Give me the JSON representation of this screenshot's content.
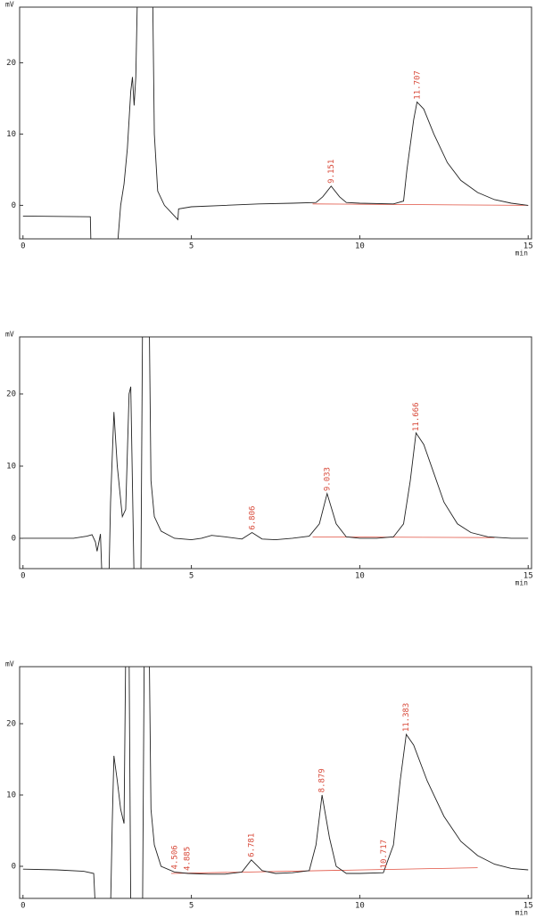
{
  "chart_data": [
    {
      "type": "line",
      "x_label": "min",
      "y_label": "mV",
      "xlim": [
        -0.1,
        15.1
      ],
      "ylim": [
        -4.7,
        27.8
      ],
      "xticks": [
        0,
        5,
        10,
        15
      ],
      "yticks": [
        0,
        10,
        20
      ],
      "color": "#222222",
      "x": [
        0,
        2.0,
        2.02,
        2.4,
        2.8,
        2.9,
        3.0,
        3.1,
        3.2,
        3.25,
        3.3,
        3.35,
        3.4,
        3.85,
        3.9,
        4.0,
        4.2,
        4.5,
        4.6,
        4.62,
        5,
        6,
        7,
        8,
        8.7,
        8.9,
        9.15,
        9.4,
        9.6,
        10,
        11,
        11.3,
        11.4,
        11.6,
        11.7,
        11.9,
        12.2,
        12.6,
        13,
        13.5,
        14,
        14.5,
        15
      ],
      "values": [
        -1.5,
        -1.6,
        -6,
        null,
        -6,
        0,
        3,
        8,
        16,
        18,
        14,
        18,
        30,
        30,
        10,
        2,
        0,
        -1.5,
        -2,
        -0.5,
        -0.2,
        0,
        0.2,
        0.3,
        0.4,
        1.2,
        2.7,
        1.2,
        0.4,
        0.3,
        0.2,
        0.6,
        5,
        12,
        14.5,
        13.5,
        10,
        6,
        3.5,
        1.8,
        0.8,
        0.3,
        0
      ],
      "baseline": {
        "color": "#e05040",
        "x": [
          8.6,
          15
        ],
        "values": [
          0.2,
          0
        ]
      },
      "peaks": [
        {
          "value": 9.151,
          "label": "9.151"
        },
        {
          "value": 11.707,
          "label": "11.707"
        }
      ]
    },
    {
      "type": "line",
      "x_label": "min",
      "y_label": "mV",
      "xlim": [
        -0.1,
        15.1
      ],
      "ylim": [
        -4.2,
        27.9
      ],
      "xticks": [
        0,
        5,
        10,
        15
      ],
      "yticks": [
        0,
        10,
        20
      ],
      "color": "#222222",
      "x": [
        0,
        1,
        1.5,
        1.9,
        2.05,
        2.15,
        2.2,
        2.3,
        2.35,
        2.45,
        2.55,
        2.6,
        2.7,
        2.8,
        2.95,
        3.05,
        3.15,
        3.2,
        3.3,
        3.4,
        3.5,
        3.55,
        3.75,
        3.8,
        3.9,
        4.1,
        4.5,
        5,
        5.3,
        5.6,
        6,
        6.5,
        6.8,
        7.1,
        7.5,
        8,
        8.5,
        8.8,
        9.03,
        9.3,
        9.6,
        10,
        10.5,
        11,
        11.3,
        11.5,
        11.67,
        11.9,
        12.2,
        12.5,
        12.9,
        13.3,
        13.8,
        14.5,
        15
      ],
      "values": [
        0,
        0,
        0,
        0.3,
        0.5,
        -0.5,
        -1.8,
        0.6,
        -6,
        null,
        -6,
        5,
        17.5,
        10,
        3,
        4,
        20,
        21,
        -6,
        null,
        -6,
        30,
        30,
        8,
        3,
        1,
        0,
        -0.2,
        0,
        0.4,
        0.2,
        -0.1,
        0.8,
        -0.1,
        -0.2,
        0,
        0.3,
        2,
        6.2,
        2,
        0.2,
        0,
        0,
        0.2,
        2,
        8,
        14.6,
        13,
        9,
        5,
        2,
        0.8,
        0.2,
        0,
        0
      ],
      "baseline": {
        "color": "#e05040",
        "x": [
          8.6,
          14
        ],
        "values": [
          0.2,
          0.1
        ]
      },
      "peaks": [
        {
          "value": 6.806,
          "label": "6.806"
        },
        {
          "value": 9.033,
          "label": "9.033"
        },
        {
          "value": 11.666,
          "label": "11.666"
        }
      ]
    },
    {
      "type": "line",
      "x_label": "min",
      "y_label": "mV",
      "xlim": [
        -0.1,
        15.1
      ],
      "ylim": [
        -4.5,
        28
      ],
      "xticks": [
        0,
        5,
        10,
        15
      ],
      "yticks": [
        0,
        10,
        20
      ],
      "color": "#222222",
      "x": [
        0,
        1,
        1.8,
        2.1,
        2.15,
        2.4,
        2.6,
        2.65,
        2.7,
        2.8,
        2.9,
        3.0,
        3.05,
        3.15,
        3.2,
        3.4,
        3.55,
        3.6,
        3.75,
        3.8,
        3.9,
        4.1,
        4.5,
        4.9,
        5.5,
        6,
        6.5,
        6.78,
        7.1,
        7.5,
        8,
        8.5,
        8.7,
        8.88,
        9.1,
        9.3,
        9.6,
        10,
        10.7,
        11,
        11.2,
        11.38,
        11.6,
        12,
        12.5,
        13,
        13.5,
        14,
        14.5,
        15
      ],
      "values": [
        -0.4,
        -0.5,
        -0.7,
        -1,
        -6,
        null,
        -6,
        6,
        15.5,
        12,
        8,
        6,
        30,
        30,
        -6,
        null,
        -6,
        30,
        30,
        8,
        3,
        0,
        -0.8,
        -1,
        -1.1,
        -1.1,
        -0.8,
        0.9,
        -0.6,
        -1,
        -0.9,
        -0.6,
        3,
        10,
        4,
        0,
        -1,
        -1,
        -0.9,
        3,
        12,
        18.5,
        17,
        12,
        7,
        3.5,
        1.5,
        0.3,
        -0.3,
        -0.5
      ],
      "baseline": {
        "color": "#e05040",
        "x": [
          4.4,
          13.5
        ],
        "values": [
          -1,
          -0.2
        ]
      },
      "peaks": [
        {
          "value": 4.506,
          "label": "4.506"
        },
        {
          "value": 4.885,
          "label": "4.885"
        },
        {
          "value": 6.781,
          "label": "6.781"
        },
        {
          "value": 8.879,
          "label": "8.879"
        },
        {
          "value": 10.717,
          "label": "10.717"
        },
        {
          "value": 11.383,
          "label": "11.383"
        }
      ]
    }
  ]
}
